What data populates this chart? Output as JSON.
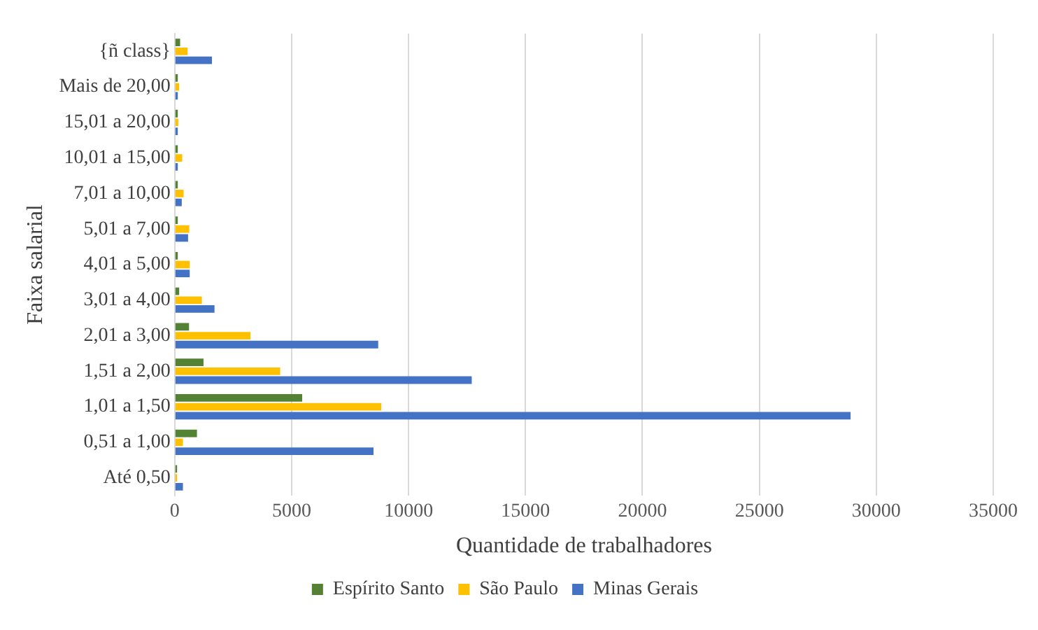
{
  "chart_data": {
    "type": "bar",
    "orientation": "horizontal",
    "xlabel": "Quantidade de trabalhadores",
    "ylabel": "Faixa salarial",
    "categories": [
      "{ñ class}",
      "Mais de 20,00",
      "15,01 a 20,00",
      "10,01 a 15,00",
      "7,01 a 10,00",
      "5,01 a 7,00",
      "4,01 a 5,00",
      "3,01 a 4,00",
      "2,01 a 3,00",
      "1,51 a 2,00",
      "1,01 a 1,50",
      "0,51 a 1,00",
      "Até 0,50"
    ],
    "series": [
      {
        "name": "Espírito Santo",
        "color": "#548235",
        "values": [
          230,
          130,
          130,
          130,
          130,
          130,
          130,
          190,
          610,
          1230,
          5450,
          950,
          100
        ]
      },
      {
        "name": "São Paulo",
        "color": "#ffc000",
        "values": [
          550,
          190,
          150,
          320,
          380,
          620,
          640,
          1160,
          3240,
          4510,
          8830,
          350,
          100
        ]
      },
      {
        "name": "Minas Gerais",
        "color": "#4472c4",
        "values": [
          1590,
          130,
          130,
          130,
          300,
          570,
          640,
          1700,
          8700,
          12700,
          28900,
          8500,
          350
        ]
      }
    ],
    "xlim": [
      0,
      35000
    ],
    "xticks": [
      0,
      5000,
      10000,
      15000,
      20000,
      25000,
      30000,
      35000
    ],
    "grid": "x",
    "legend": "bottom"
  }
}
